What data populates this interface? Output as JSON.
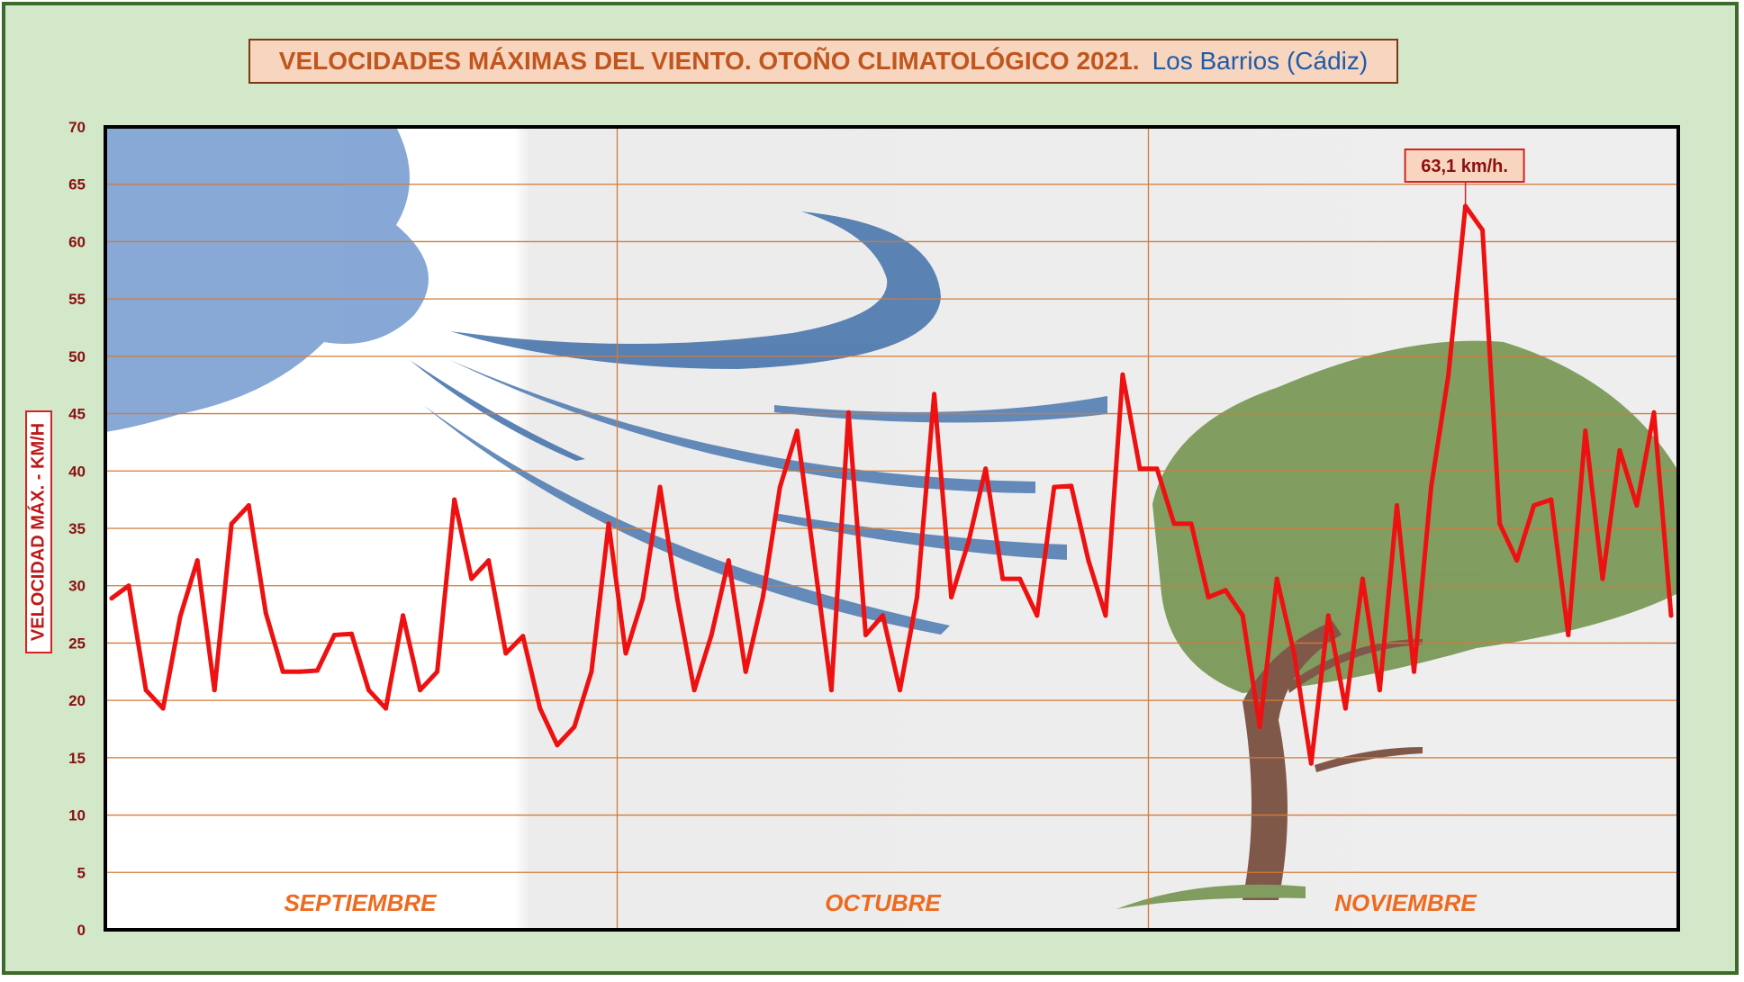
{
  "chart_data": {
    "type": "line",
    "title": "VELOCIDADES MÁXIMAS DEL VIENTO. OTOÑO CLIMATOLÓGICO 2021.",
    "subtitle": "Los Barrios (Cádiz)",
    "ylabel": "VELOCIDAD MÁX. - KM/H",
    "xlabel": "",
    "ylim": [
      0,
      70
    ],
    "yticks": [
      "0",
      "5",
      "10",
      "15",
      "20",
      "25",
      "30",
      "35",
      "40",
      "45",
      "50",
      "55",
      "60",
      "65",
      "70"
    ],
    "grid": true,
    "months": [
      "SEPTIEMBRE",
      "OCTUBRE",
      "NOVIEMBRE"
    ],
    "annotation": {
      "text": "63,1 km/h.",
      "day": 79,
      "value": 63.1
    },
    "series": [
      {
        "values": [
          28.9,
          30.0,
          20.9,
          19.3,
          27.3,
          32.2,
          20.9,
          35.4,
          37.0,
          27.6,
          22.5,
          22.5,
          22.6,
          25.7,
          25.8,
          20.9,
          19.3,
          27.4,
          20.9,
          22.5,
          37.5,
          30.6,
          32.2,
          24.1,
          25.6,
          19.3,
          16.1,
          17.7,
          22.5,
          35.4,
          24.1,
          28.9,
          38.6,
          28.9,
          20.9,
          25.7,
          32.2,
          22.5,
          29.0,
          38.6,
          43.5,
          32.2,
          20.9,
          45.1,
          25.7,
          27.4,
          20.9,
          29.0,
          46.7,
          29.0,
          33.8,
          40.2,
          30.6,
          30.6,
          27.4,
          38.6,
          38.7,
          32.2,
          27.4,
          48.4,
          40.2,
          40.2,
          35.4,
          35.4,
          29.0,
          29.6,
          27.4,
          17.7,
          30.6,
          24.1,
          14.5,
          27.4,
          19.3,
          30.6,
          20.9,
          37.0,
          22.5,
          38.6,
          48.3,
          63.1,
          61.0,
          35.4,
          32.2,
          37.0,
          37.5,
          25.7,
          43.5,
          30.6,
          41.8,
          37.0,
          45.1,
          27.4
        ]
      }
    ],
    "colors": {
      "line": "#ee1111",
      "grid": "#d47a36",
      "frame": "#d3e7c9",
      "title_box": "#f7d5bf"
    }
  }
}
